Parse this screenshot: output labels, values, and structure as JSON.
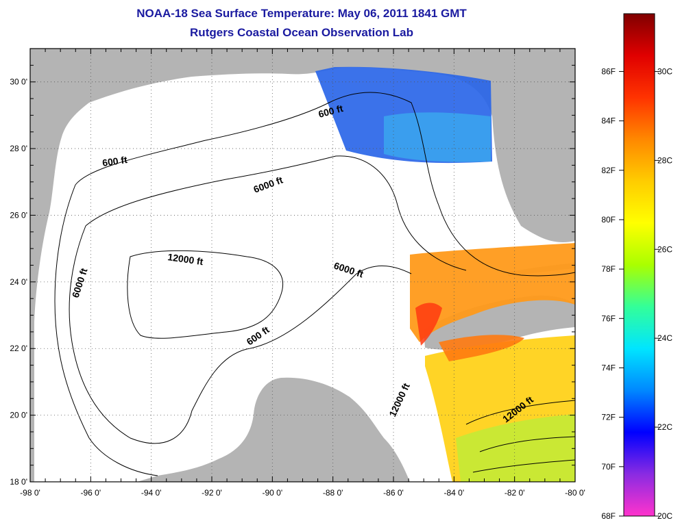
{
  "title": "NOAA-18 Sea Surface Temperature:  May 06, 2011 1841 GMT",
  "subtitle": "Rutgers Coastal Ocean Observation Lab",
  "map": {
    "lon_range": [
      -98,
      -80
    ],
    "lat_range": [
      18,
      31
    ],
    "lon_ticks": [
      "-98 0'",
      "-96 0'",
      "-94 0'",
      "-92 0'",
      "-90 0'",
      "-88 0'",
      "-86 0'",
      "-84 0'",
      "-82 0'",
      "-80 0'"
    ],
    "lat_ticks": [
      "18 0'",
      "20 0'",
      "22 0'",
      "24 0'",
      "26 0'",
      "28 0'",
      "30 0'"
    ],
    "contour_labels": [
      "600 ft",
      "600 ft",
      "6000 ft",
      "12000 ft",
      "6000 ft",
      "6000 ft",
      "600 ft",
      "12000 ft",
      "12000 ft"
    ],
    "colors": {
      "land": "#b4b4b4",
      "water": "#ffffff",
      "grid": "#555555"
    }
  },
  "colorbar": {
    "fahrenheit_labels": [
      "86F",
      "84F",
      "82F",
      "80F",
      "78F",
      "76F",
      "74F",
      "72F",
      "70F",
      "68F"
    ],
    "celsius_labels": [
      "30C",
      "28C",
      "26C",
      "24C",
      "22C",
      "20C"
    ],
    "range_c": [
      20,
      31.3
    ],
    "stops": [
      "#ff33cc",
      "#8a2be2",
      "#0000ff",
      "#0088ff",
      "#00e5ff",
      "#33ff99",
      "#aaff00",
      "#ffff00",
      "#ffcc00",
      "#ff8800",
      "#ff3300",
      "#e00000",
      "#800000"
    ]
  }
}
